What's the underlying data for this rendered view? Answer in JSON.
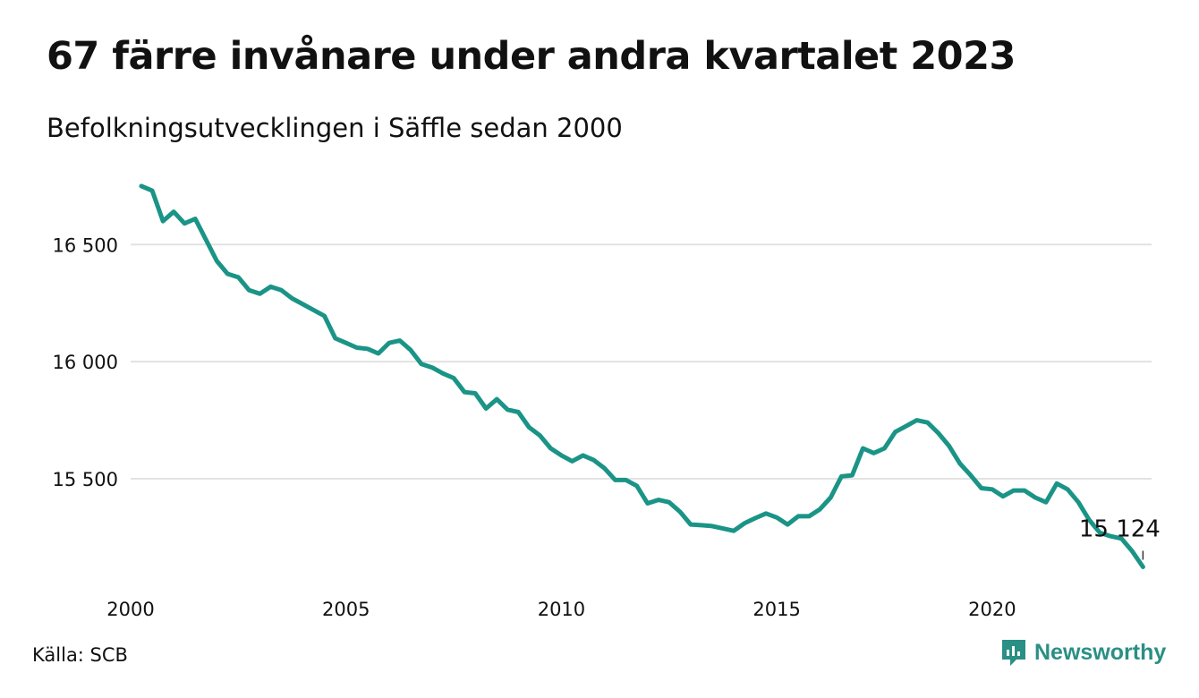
{
  "title": "67 färre invånare under andra kvartalet 2023",
  "subtitle": "Befolkningsutvecklingen i Säffle sedan 2000",
  "source": "Källa: SCB",
  "brand": "Newsworthy",
  "colors": {
    "line": "#1a9486",
    "grid": "#e2e2e2",
    "brand": "#2a8f84"
  },
  "chart_data": {
    "type": "line",
    "title": "67 färre invånare under andra kvartalet 2023",
    "subtitle": "Befolkningsutvecklingen i Säffle sedan 2000",
    "xlabel": "",
    "ylabel": "",
    "x_ticks": [
      "2000",
      "2005",
      "2010",
      "2015",
      "2020"
    ],
    "y_ticks": [
      "16 500",
      "16 000",
      "15 500"
    ],
    "xlim": [
      2000,
      2023.7
    ],
    "ylim": [
      15080,
      16780
    ],
    "grid": true,
    "end_label": "15 124",
    "series": [
      {
        "x": [
          2000.25,
          2000.5,
          2000.75,
          2001,
          2001.25,
          2001.5,
          2001.75,
          2002,
          2002.25,
          2002.5,
          2002.75,
          2003,
          2003.25,
          2003.5,
          2003.75,
          2004,
          2004.25,
          2004.5,
          2004.75,
          2005,
          2005.25,
          2005.5,
          2005.75,
          2006,
          2006.25,
          2006.5,
          2006.75,
          2007,
          2007.25,
          2007.5,
          2007.75,
          2008,
          2008.25,
          2008.5,
          2008.75,
          2009,
          2009.25,
          2009.5,
          2009.75,
          2010,
          2010.25,
          2010.5,
          2010.75,
          2011,
          2011.25,
          2011.5,
          2011.75,
          2012,
          2012.25,
          2012.5,
          2012.75,
          2013,
          2013.25,
          2013.5,
          2013.75,
          2014,
          2014.25,
          2014.5,
          2014.75,
          2015,
          2015.25,
          2015.5,
          2015.75,
          2016,
          2016.25,
          2016.5,
          2016.75,
          2017,
          2017.25,
          2017.5,
          2017.75,
          2018,
          2018.25,
          2018.5,
          2018.75,
          2019,
          2019.25,
          2019.5,
          2019.75,
          2020,
          2020.25,
          2020.5,
          2020.75,
          2021,
          2021.25,
          2021.5,
          2021.75,
          2022,
          2022.25,
          2022.5,
          2022.75,
          2023,
          2023.25,
          2023.5
        ],
        "values": [
          16750,
          16730,
          16600,
          16640,
          16590,
          16610,
          16520,
          16430,
          16375,
          16360,
          16305,
          16290,
          16320,
          16305,
          16270,
          16245,
          16220,
          16195,
          16100,
          16080,
          16060,
          16055,
          16035,
          16080,
          16090,
          16050,
          15990,
          15975,
          15950,
          15930,
          15870,
          15865,
          15800,
          15840,
          15795,
          15785,
          15720,
          15685,
          15630,
          15600,
          15575,
          15600,
          15580,
          15545,
          15495,
          15495,
          15470,
          15395,
          15410,
          15400,
          15360,
          15305,
          15302,
          15298,
          15288,
          15278,
          15310,
          15332,
          15352,
          15335,
          15305,
          15340,
          15340,
          15370,
          15420,
          15510,
          15515,
          15630,
          15610,
          15630,
          15700,
          15725,
          15750,
          15740,
          15695,
          15640,
          15565,
          15515,
          15460,
          15455,
          15425,
          15450,
          15450,
          15420,
          15400,
          15480,
          15455,
          15400,
          15325,
          15270,
          15255,
          15245,
          15191,
          15124
        ]
      }
    ]
  }
}
